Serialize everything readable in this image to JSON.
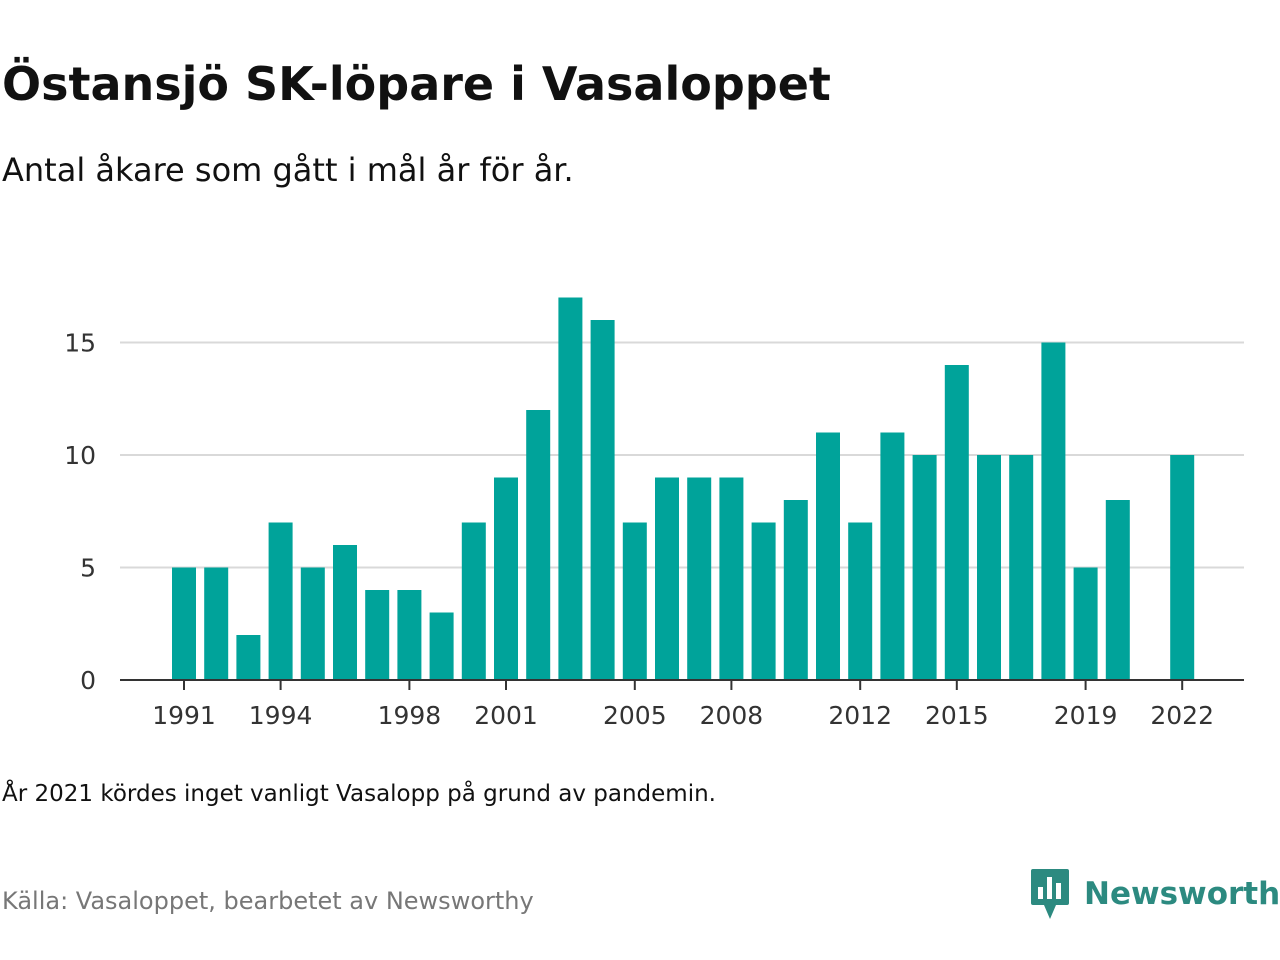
{
  "header": {
    "title": "Östansjö SK-löpare i Vasaloppet",
    "subtitle": "Antal åkare som gått i mål år för år."
  },
  "footer": {
    "note": "År 2021 kördes inget vanligt Vasalopp på grund av pandemin.",
    "source": "Källa: Vasaloppet, bearbetet av Newsworthy",
    "brand": "Newsworthy",
    "brand_icon": "newsworthy-logo-icon"
  },
  "colors": {
    "bar": "#00a39a",
    "grid": "#d9d9d9",
    "axis": "#333333",
    "brand": "#2c8a80"
  },
  "chart_data": {
    "type": "bar",
    "title": "Östansjö SK-löpare i Vasaloppet",
    "subtitle": "Antal åkare som gått i mål år för år.",
    "xlabel": "",
    "ylabel": "",
    "categories": [
      1991,
      1992,
      1993,
      1994,
      1995,
      1996,
      1997,
      1998,
      1999,
      2000,
      2001,
      2002,
      2003,
      2004,
      2005,
      2006,
      2007,
      2008,
      2009,
      2010,
      2011,
      2012,
      2013,
      2014,
      2015,
      2016,
      2017,
      2018,
      2019,
      2020,
      2021,
      2022
    ],
    "values": [
      5,
      5,
      2,
      7,
      5,
      6,
      4,
      4,
      3,
      7,
      9,
      12,
      17,
      16,
      7,
      9,
      9,
      9,
      7,
      8,
      11,
      7,
      11,
      10,
      14,
      10,
      10,
      15,
      5,
      8,
      null,
      10
    ],
    "x_tick_labels": [
      "1991",
      "1994",
      "1998",
      "2001",
      "2005",
      "2008",
      "2012",
      "2015",
      "2019",
      "2022"
    ],
    "y_ticks": [
      0,
      5,
      10,
      15
    ],
    "ylim": [
      0,
      17
    ],
    "grid": true,
    "legend": "none"
  }
}
